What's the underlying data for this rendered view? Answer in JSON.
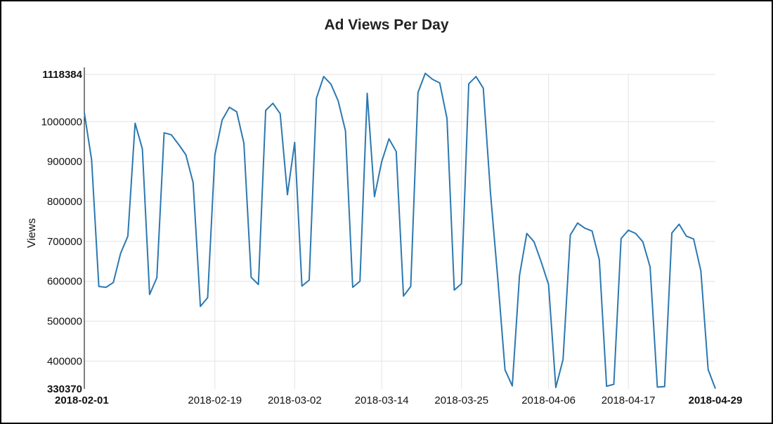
{
  "chart_data": {
    "type": "line",
    "title": "Ad Views Per Day",
    "ylabel": "Views",
    "xlabel": "",
    "ylim": [
      330370,
      1118384
    ],
    "xlim": [
      "2018-02-01",
      "2018-04-29"
    ],
    "grid": true,
    "legend": "none",
    "colors": {
      "line": "#2b78b0"
    },
    "x_ticks": [
      {
        "label": "2018-02-01",
        "bold": true
      },
      {
        "label": "2018-02-19",
        "bold": false
      },
      {
        "label": "2018-03-02",
        "bold": false
      },
      {
        "label": "2018-03-14",
        "bold": false
      },
      {
        "label": "2018-03-25",
        "bold": false
      },
      {
        "label": "2018-04-06",
        "bold": false
      },
      {
        "label": "2018-04-17",
        "bold": false
      },
      {
        "label": "2018-04-29",
        "bold": true
      }
    ],
    "y_ticks": [
      {
        "label": "330370",
        "value": 330370,
        "bold": true
      },
      {
        "label": "400000",
        "value": 400000,
        "bold": false
      },
      {
        "label": "500000",
        "value": 500000,
        "bold": false
      },
      {
        "label": "600000",
        "value": 600000,
        "bold": false
      },
      {
        "label": "700000",
        "value": 700000,
        "bold": false
      },
      {
        "label": "800000",
        "value": 800000,
        "bold": false
      },
      {
        "label": "900000",
        "value": 900000,
        "bold": false
      },
      {
        "label": "1000000",
        "value": 1000000,
        "bold": false
      },
      {
        "label": "1118384",
        "value": 1118384,
        "bold": true
      }
    ],
    "series": [
      {
        "x": [
          "2018-02-01",
          "2018-02-02",
          "2018-02-03",
          "2018-02-04",
          "2018-02-05",
          "2018-02-06",
          "2018-02-07",
          "2018-02-08",
          "2018-02-09",
          "2018-02-10",
          "2018-02-11",
          "2018-02-12",
          "2018-02-13",
          "2018-02-14",
          "2018-02-15",
          "2018-02-16",
          "2018-02-17",
          "2018-02-18",
          "2018-02-19",
          "2018-02-20",
          "2018-02-21",
          "2018-02-22",
          "2018-02-23",
          "2018-02-24",
          "2018-02-25",
          "2018-02-26",
          "2018-02-27",
          "2018-02-28",
          "2018-03-01",
          "2018-03-02",
          "2018-03-03",
          "2018-03-04",
          "2018-03-05",
          "2018-03-06",
          "2018-03-07",
          "2018-03-08",
          "2018-03-09",
          "2018-03-10",
          "2018-03-11",
          "2018-03-12",
          "2018-03-13",
          "2018-03-14",
          "2018-03-15",
          "2018-03-16",
          "2018-03-17",
          "2018-03-18",
          "2018-03-19",
          "2018-03-20",
          "2018-03-21",
          "2018-03-22",
          "2018-03-23",
          "2018-03-24",
          "2018-03-25",
          "2018-03-26",
          "2018-03-27",
          "2018-03-28",
          "2018-03-29",
          "2018-03-30",
          "2018-03-31",
          "2018-04-01",
          "2018-04-02",
          "2018-04-03",
          "2018-04-04",
          "2018-04-05",
          "2018-04-06",
          "2018-04-07",
          "2018-04-08",
          "2018-04-09",
          "2018-04-10",
          "2018-04-11",
          "2018-04-12",
          "2018-04-13",
          "2018-04-14",
          "2018-04-15",
          "2018-04-16",
          "2018-04-17",
          "2018-04-18",
          "2018-04-19",
          "2018-04-20",
          "2018-04-21",
          "2018-04-22",
          "2018-04-23",
          "2018-04-24",
          "2018-04-25",
          "2018-04-26",
          "2018-04-27",
          "2018-04-28",
          "2018-04-29"
        ],
        "values": [
          1022000,
          905000,
          587000,
          585000,
          597000,
          670000,
          713000,
          996000,
          932000,
          567000,
          609000,
          972000,
          967000,
          943000,
          917000,
          847000,
          537000,
          559000,
          917000,
          1004000,
          1036000,
          1025000,
          946000,
          610000,
          592000,
          1028000,
          1046000,
          1020000,
          817000,
          948000,
          588000,
          603000,
          1059000,
          1113000,
          1094000,
          1052000,
          977000,
          585000,
          600000,
          1071000,
          812000,
          900000,
          957000,
          925000,
          563000,
          587000,
          1073000,
          1121000,
          1106000,
          1097000,
          1008000,
          578000,
          594000,
          1095000,
          1113000,
          1084000,
          820000,
          607000,
          378000,
          338000,
          615000,
          720000,
          699000,
          648000,
          592000,
          334000,
          404000,
          716000,
          746000,
          733000,
          726000,
          654000,
          337000,
          342000,
          707000,
          728000,
          720000,
          699000,
          636000,
          335000,
          336000,
          721000,
          743000,
          713000,
          706000,
          626000,
          379000,
          331000
        ]
      }
    ]
  }
}
